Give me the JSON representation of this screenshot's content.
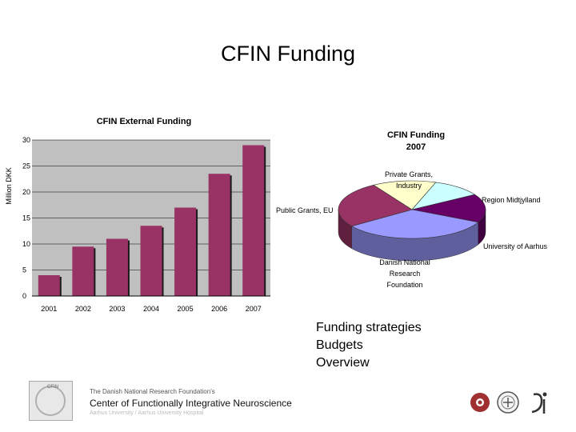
{
  "slide": {
    "title": "CFIN Funding",
    "bullets": [
      "Funding strategies",
      "Budgets",
      "Overview"
    ]
  },
  "footer": {
    "foundation": "The Danish National Research Foundation's",
    "center": "Center of Functionally Integrative Neuroscience",
    "universities": "Aarhus University / Aarhus University Hospital",
    "logo_text": "CFIN"
  },
  "colors": {
    "bar_fill": "#993366",
    "plot_bg": "#c0c0c0"
  },
  "chart_data": [
    {
      "type": "bar",
      "title": "CFIN External Funding",
      "ylabel": "Million DKK",
      "categories": [
        "2001",
        "2002",
        "2003",
        "2004",
        "2005",
        "2006",
        "2007"
      ],
      "values": [
        4,
        9.5,
        11,
        13.5,
        17,
        23.5,
        29
      ],
      "ylim": [
        0,
        30
      ],
      "yticks": [
        0,
        5,
        10,
        15,
        20,
        25,
        30
      ],
      "grid": true,
      "legend": "none"
    },
    {
      "type": "pie",
      "title": "CFIN Funding 2007",
      "title_lines": [
        "CFIN Funding",
        "2007"
      ],
      "slices": [
        {
          "label": "Private Grants, Industry",
          "label_lines": [
            "Private Grants,",
            "Industry"
          ],
          "value": 14,
          "color": "#ffffcc"
        },
        {
          "label": "Region Midtjylland",
          "label_lines": [
            "Region Midtjylland"
          ],
          "value": 11,
          "color": "#ccffff"
        },
        {
          "label": "University of Aarhus",
          "label_lines": [
            "University of Aarhus"
          ],
          "value": 16,
          "color": "#660066"
        },
        {
          "label": "Danish National Research Foundation",
          "label_lines": [
            "Danish National",
            "Research",
            "Foundation"
          ],
          "value": 33,
          "color": "#9999ff"
        },
        {
          "label": "Public Grants, EU",
          "label_lines": [
            "Public Grants, EU"
          ],
          "value": 26,
          "color": "#993366"
        }
      ]
    }
  ]
}
